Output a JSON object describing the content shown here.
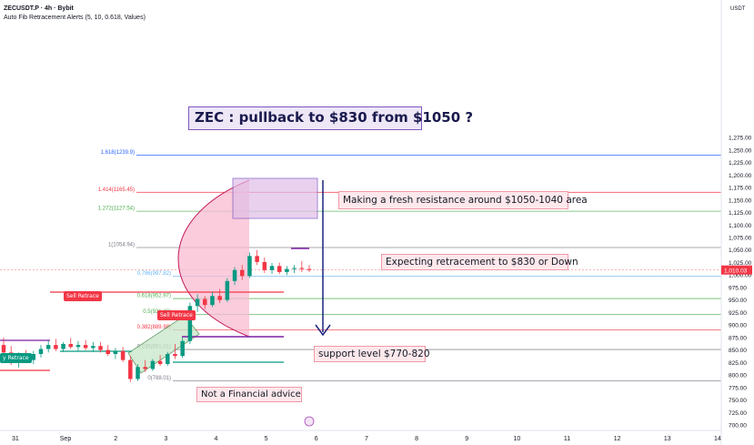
{
  "header": {
    "symbol_line": "ZECUSDT.P · 4h · Bybit",
    "indicator_line": "Auto Fib Retracement Alerts (5, 10, 0.618, Values)"
  },
  "axis_unit": "USDT",
  "colors": {
    "up": "#089981",
    "down": "#f23645",
    "fib_1618": "#2962ff",
    "fib_1414": "#f23645",
    "fib_1272": "#4caf50",
    "fib_1": "#787b86",
    "fib_0786": "#64b5f6",
    "fib_0618": "#4caf50",
    "fib_05": "#4caf50",
    "fib_0382": "#f23645",
    "fib_0236": "#787b86",
    "fib_0": "#787b86",
    "arc_fill": "#f8bbd0",
    "accent_box": "#7e57c2"
  },
  "annotations": {
    "title": "ZEC : pullback to $830 from $1050 ?",
    "resistance": "Making a fresh resistance around $1050-1040 area",
    "retracement": "Expecting retracement to $830 or Down",
    "support": "support level $770-820",
    "disclaimer": "Not a Financial advice",
    "signal_1": "Sell Retrace",
    "signal_2": "Sell Retrace",
    "signal_3": "y Retrace"
  },
  "chart_data": {
    "type": "candlestick",
    "symbol": "ZECUSDT.P",
    "timeframe": "4h",
    "exchange": "Bybit",
    "last_price": 1010.03,
    "y_unit": "USDT",
    "ylim": [
      700,
      1300
    ],
    "y_ticks": [
      700,
      725,
      750,
      775,
      800,
      825,
      850,
      875,
      900,
      925,
      950,
      975,
      1000,
      1025,
      1050,
      1075,
      1100,
      1125,
      1150,
      1175,
      1200,
      1225,
      1250,
      1275
    ],
    "y_tick_labels": [
      "700.00",
      "725.00",
      "750.00",
      "775.00",
      "800.00",
      "825.00",
      "850.00",
      "875.00",
      "900.00",
      "925.00",
      "950.00",
      "975.00",
      "1,000.00",
      "1,025.00",
      "1,050.00",
      "1,075.00",
      "1,100.00",
      "1,125.00",
      "1,150.00",
      "1,175.00",
      "1,200.00",
      "1,225.00",
      "1,250.00",
      "1,275.00"
    ],
    "x_ticks": [
      "31",
      "Sep",
      "2",
      "3",
      "4",
      "5",
      "6",
      "7",
      "8",
      "9",
      "10",
      "11",
      "12",
      "13",
      "14"
    ],
    "x_tick_days": [
      31,
      1,
      2,
      3,
      4,
      5,
      6,
      7,
      8,
      9,
      10,
      11,
      12,
      13,
      14
    ],
    "fib_levels": [
      {
        "label": "1.618(1239.9)",
        "price": 1239.9
      },
      {
        "label": "1.414(1165.45)",
        "price": 1165.45
      },
      {
        "label": "1.272(1127.54)",
        "price": 1127.54
      },
      {
        "label": "1(1054.94)",
        "price": 1054.94
      },
      {
        "label": "0.786(997.82)",
        "price": 997.82
      },
      {
        "label": "0.618(952.97)",
        "price": 952.97
      },
      {
        "label": "0.5(921.48)",
        "price": 921.48
      },
      {
        "label": "0.382(889.98)",
        "price": 889.98
      },
      {
        "label": "0.236(851.01)",
        "price": 851.01
      },
      {
        "label": "0(788.01)",
        "price": 788.01
      }
    ],
    "candles": [
      {
        "o": 860,
        "h": 875,
        "l": 840,
        "c": 845
      },
      {
        "o": 845,
        "h": 858,
        "l": 820,
        "c": 828
      },
      {
        "o": 828,
        "h": 845,
        "l": 815,
        "c": 838
      },
      {
        "o": 838,
        "h": 850,
        "l": 825,
        "c": 830
      },
      {
        "o": 830,
        "h": 848,
        "l": 822,
        "c": 842
      },
      {
        "o": 842,
        "h": 860,
        "l": 835,
        "c": 852
      },
      {
        "o": 852,
        "h": 868,
        "l": 845,
        "c": 860
      },
      {
        "o": 860,
        "h": 872,
        "l": 848,
        "c": 852
      },
      {
        "o": 852,
        "h": 866,
        "l": 846,
        "c": 862
      },
      {
        "o": 862,
        "h": 874,
        "l": 852,
        "c": 856
      },
      {
        "o": 856,
        "h": 868,
        "l": 848,
        "c": 860
      },
      {
        "o": 860,
        "h": 870,
        "l": 850,
        "c": 854
      },
      {
        "o": 854,
        "h": 866,
        "l": 846,
        "c": 858
      },
      {
        "o": 858,
        "h": 866,
        "l": 845,
        "c": 850
      },
      {
        "o": 850,
        "h": 860,
        "l": 838,
        "c": 842
      },
      {
        "o": 842,
        "h": 854,
        "l": 832,
        "c": 848
      },
      {
        "o": 848,
        "h": 856,
        "l": 826,
        "c": 830
      },
      {
        "o": 830,
        "h": 838,
        "l": 786,
        "c": 792
      },
      {
        "o": 792,
        "h": 822,
        "l": 788,
        "c": 816
      },
      {
        "o": 816,
        "h": 830,
        "l": 806,
        "c": 812
      },
      {
        "o": 812,
        "h": 832,
        "l": 808,
        "c": 828
      },
      {
        "o": 828,
        "h": 840,
        "l": 818,
        "c": 822
      },
      {
        "o": 822,
        "h": 846,
        "l": 818,
        "c": 842
      },
      {
        "o": 842,
        "h": 862,
        "l": 832,
        "c": 838
      },
      {
        "o": 838,
        "h": 875,
        "l": 834,
        "c": 868
      },
      {
        "o": 868,
        "h": 945,
        "l": 862,
        "c": 938
      },
      {
        "o": 938,
        "h": 962,
        "l": 926,
        "c": 952
      },
      {
        "o": 952,
        "h": 958,
        "l": 932,
        "c": 940
      },
      {
        "o": 940,
        "h": 966,
        "l": 936,
        "c": 958
      },
      {
        "o": 958,
        "h": 972,
        "l": 944,
        "c": 950
      },
      {
        "o": 950,
        "h": 994,
        "l": 946,
        "c": 988
      },
      {
        "o": 988,
        "h": 1016,
        "l": 980,
        "c": 1010
      },
      {
        "o": 1010,
        "h": 1020,
        "l": 990,
        "c": 998
      },
      {
        "o": 998,
        "h": 1045,
        "l": 994,
        "c": 1038
      },
      {
        "o": 1038,
        "h": 1050,
        "l": 1020,
        "c": 1026
      },
      {
        "o": 1026,
        "h": 1035,
        "l": 1004,
        "c": 1010
      },
      {
        "o": 1010,
        "h": 1024,
        "l": 1002,
        "c": 1018
      },
      {
        "o": 1018,
        "h": 1025,
        "l": 1002,
        "c": 1006
      },
      {
        "o": 1006,
        "h": 1018,
        "l": 1000,
        "c": 1012
      },
      {
        "o": 1012,
        "h": 1020,
        "l": 1004,
        "c": 1014
      },
      {
        "o": 1014,
        "h": 1028,
        "l": 1006,
        "c": 1012
      },
      {
        "o": 1012,
        "h": 1020,
        "l": 1006,
        "c": 1010
      }
    ]
  }
}
